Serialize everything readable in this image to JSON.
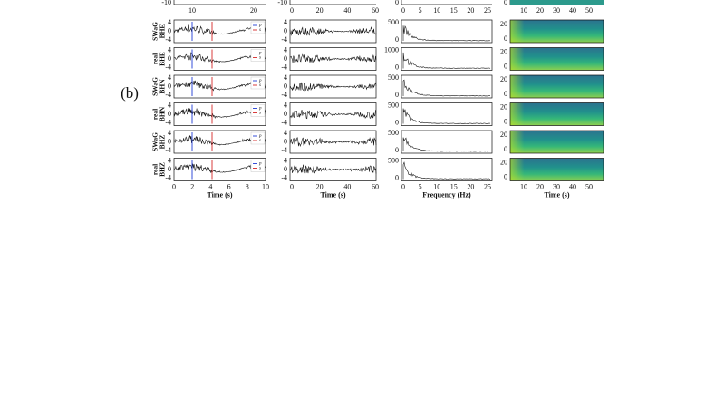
{
  "panel_label": "(b)",
  "top_strip": {
    "col1_ytick": "-10",
    "col1_xticks": [
      "10",
      "20"
    ],
    "col2_ytick": "-10",
    "col2_xticks": [
      "0",
      "20",
      "40",
      "60"
    ],
    "col3_ytick": "0",
    "col3_xticks": [
      "0",
      "5",
      "10",
      "15",
      "20",
      "25"
    ],
    "col4_ytick": "0",
    "col4_xticks": [
      "10",
      "20",
      "30",
      "40",
      "50"
    ]
  },
  "waveform_yticks": [
    "4",
    "0",
    "-4"
  ],
  "spectrogram_yticks": [
    "20",
    "0"
  ],
  "legend": [
    "p",
    "s"
  ],
  "rows": [
    {
      "label": [
        "SWaG",
        "BHE"
      ],
      "freq_yticks": [
        "500",
        "0"
      ]
    },
    {
      "label": [
        "real",
        "BHE"
      ],
      "freq_yticks": [
        "1000",
        "0"
      ]
    },
    {
      "label": [
        "SWaG",
        "BHN"
      ],
      "freq_yticks": [
        "500",
        "0"
      ]
    },
    {
      "label": [
        "real",
        "BHN"
      ],
      "freq_yticks": [
        "500",
        "0"
      ]
    },
    {
      "label": [
        "SWaG",
        "BHZ"
      ],
      "freq_yticks": [
        "500",
        "0"
      ]
    },
    {
      "label": [
        "real",
        "BHZ"
      ],
      "freq_yticks": [
        "500",
        "0"
      ]
    }
  ],
  "columns": [
    {
      "xticks": [
        "0",
        "2",
        "4",
        "6",
        "8",
        "10"
      ],
      "xlabel": "Time (s)"
    },
    {
      "xticks": [
        "0",
        "20",
        "40",
        "60"
      ],
      "xlabel": "Time (s)"
    },
    {
      "xticks": [
        "0",
        "5",
        "10",
        "15",
        "20",
        "25"
      ],
      "xlabel": "Frequency (Hz)"
    },
    {
      "xticks": [
        "10",
        "20",
        "30",
        "40",
        "50"
      ],
      "xlabel": "Time (s)"
    }
  ]
}
